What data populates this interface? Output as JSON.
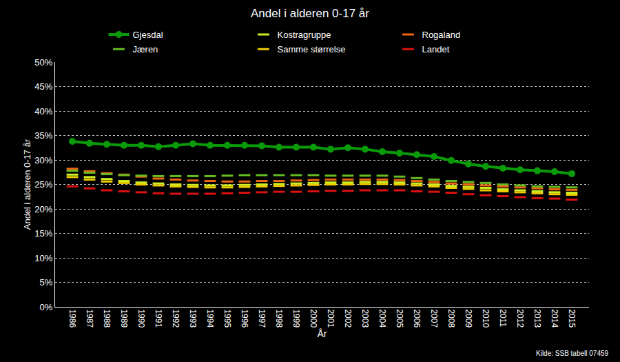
{
  "chart_data": {
    "type": "line",
    "title": "Andel i alderen 0-17 år",
    "x_label": "År",
    "y_label": "Andel i alderen 0-17 år",
    "annotations": [
      {
        "text": "Kilde: SSB tabell 07459"
      }
    ],
    "categories": [
      "1986",
      "1987",
      "1988",
      "1989",
      "1990",
      "1991",
      "1992",
      "1993",
      "1994",
      "1995",
      "1996",
      "1997",
      "1998",
      "1999",
      "2000",
      "2001",
      "2002",
      "2003",
      "2004",
      "2005",
      "2006",
      "2007",
      "2008",
      "2009",
      "2010",
      "2011",
      "2012",
      "2013",
      "2014",
      "2015"
    ],
    "ylim": [
      0,
      50
    ],
    "yticks": [
      {
        "value": 0,
        "label": "0%"
      },
      {
        "value": 5,
        "label": "5%"
      },
      {
        "value": 10,
        "label": "10%"
      },
      {
        "value": 15,
        "label": "15%"
      },
      {
        "value": 20,
        "label": "20%"
      },
      {
        "value": 25,
        "label": "25%"
      },
      {
        "value": 30,
        "label": "30%"
      },
      {
        "value": 35,
        "label": "35%"
      },
      {
        "value": 40,
        "label": "40%"
      },
      {
        "value": 45,
        "label": "45%"
      },
      {
        "value": 50,
        "label": "50%"
      }
    ],
    "grid": true,
    "legend": "top",
    "series": [
      {
        "name": "Gjesdal",
        "color": "#0a9a0a",
        "marker": "circle",
        "line_style": "solid",
        "values": [
          33.8,
          33.4,
          33.2,
          33.0,
          33.0,
          32.7,
          33.0,
          33.3,
          33.0,
          33.0,
          33.0,
          32.9,
          32.6,
          32.6,
          32.6,
          32.2,
          32.5,
          32.2,
          31.7,
          31.4,
          31.1,
          30.7,
          29.9,
          29.2,
          28.7,
          28.3,
          28.0,
          27.8,
          27.6,
          27.2
        ]
      },
      {
        "name": "Kostragruppe",
        "color": "#ccee22",
        "marker": "line-ew",
        "line_style": "none",
        "values": [
          27.0,
          26.5,
          26.1,
          25.7,
          25.4,
          25.2,
          25.0,
          24.9,
          24.8,
          24.8,
          24.9,
          25.0,
          25.1,
          25.2,
          25.3,
          25.4,
          25.4,
          25.5,
          25.5,
          25.4,
          25.2,
          25.0,
          24.7,
          24.5,
          24.3,
          24.0,
          23.8,
          23.6,
          23.4,
          23.3
        ]
      },
      {
        "name": "Rogaland",
        "color": "#ee6611",
        "marker": "line-ew",
        "line_style": "none",
        "values": [
          28.2,
          27.7,
          27.3,
          27.0,
          26.6,
          26.2,
          26.0,
          25.8,
          25.7,
          25.6,
          25.6,
          25.7,
          25.7,
          25.8,
          25.9,
          26.0,
          26.0,
          26.0,
          26.0,
          25.9,
          25.7,
          25.5,
          25.2,
          25.0,
          24.8,
          24.6,
          24.4,
          24.2,
          24.0,
          23.9
        ]
      },
      {
        "name": "Jæren",
        "color": "#66bb22",
        "marker": "line-ew",
        "line_style": "none",
        "values": [
          27.8,
          27.4,
          27.1,
          26.9,
          26.8,
          26.7,
          26.7,
          26.7,
          26.7,
          26.8,
          26.9,
          26.9,
          26.9,
          26.9,
          26.9,
          26.8,
          26.8,
          26.8,
          26.8,
          26.6,
          26.3,
          26.0,
          25.7,
          25.5,
          25.3,
          25.0,
          24.8,
          24.6,
          24.5,
          24.4
        ]
      },
      {
        "name": "Samme størrelse",
        "color": "#eecc00",
        "marker": "line-ew",
        "line_style": "none",
        "values": [
          26.5,
          26.0,
          25.6,
          25.3,
          25.0,
          24.8,
          24.6,
          24.5,
          24.4,
          24.4,
          24.5,
          24.6,
          24.7,
          24.8,
          24.9,
          25.0,
          25.0,
          25.1,
          25.1,
          25.0,
          24.8,
          24.6,
          24.3,
          24.1,
          23.8,
          23.6,
          23.4,
          23.2,
          23.0,
          22.9
        ]
      },
      {
        "name": "Landet",
        "color": "#dd1111",
        "marker": "line-ew",
        "line_style": "none",
        "values": [
          24.6,
          24.2,
          23.8,
          23.6,
          23.4,
          23.2,
          23.1,
          23.1,
          23.1,
          23.2,
          23.3,
          23.4,
          23.5,
          23.5,
          23.6,
          23.7,
          23.7,
          23.8,
          23.8,
          23.8,
          23.6,
          23.5,
          23.3,
          23.0,
          22.8,
          22.6,
          22.4,
          22.2,
          22.1,
          21.9
        ]
      }
    ]
  }
}
